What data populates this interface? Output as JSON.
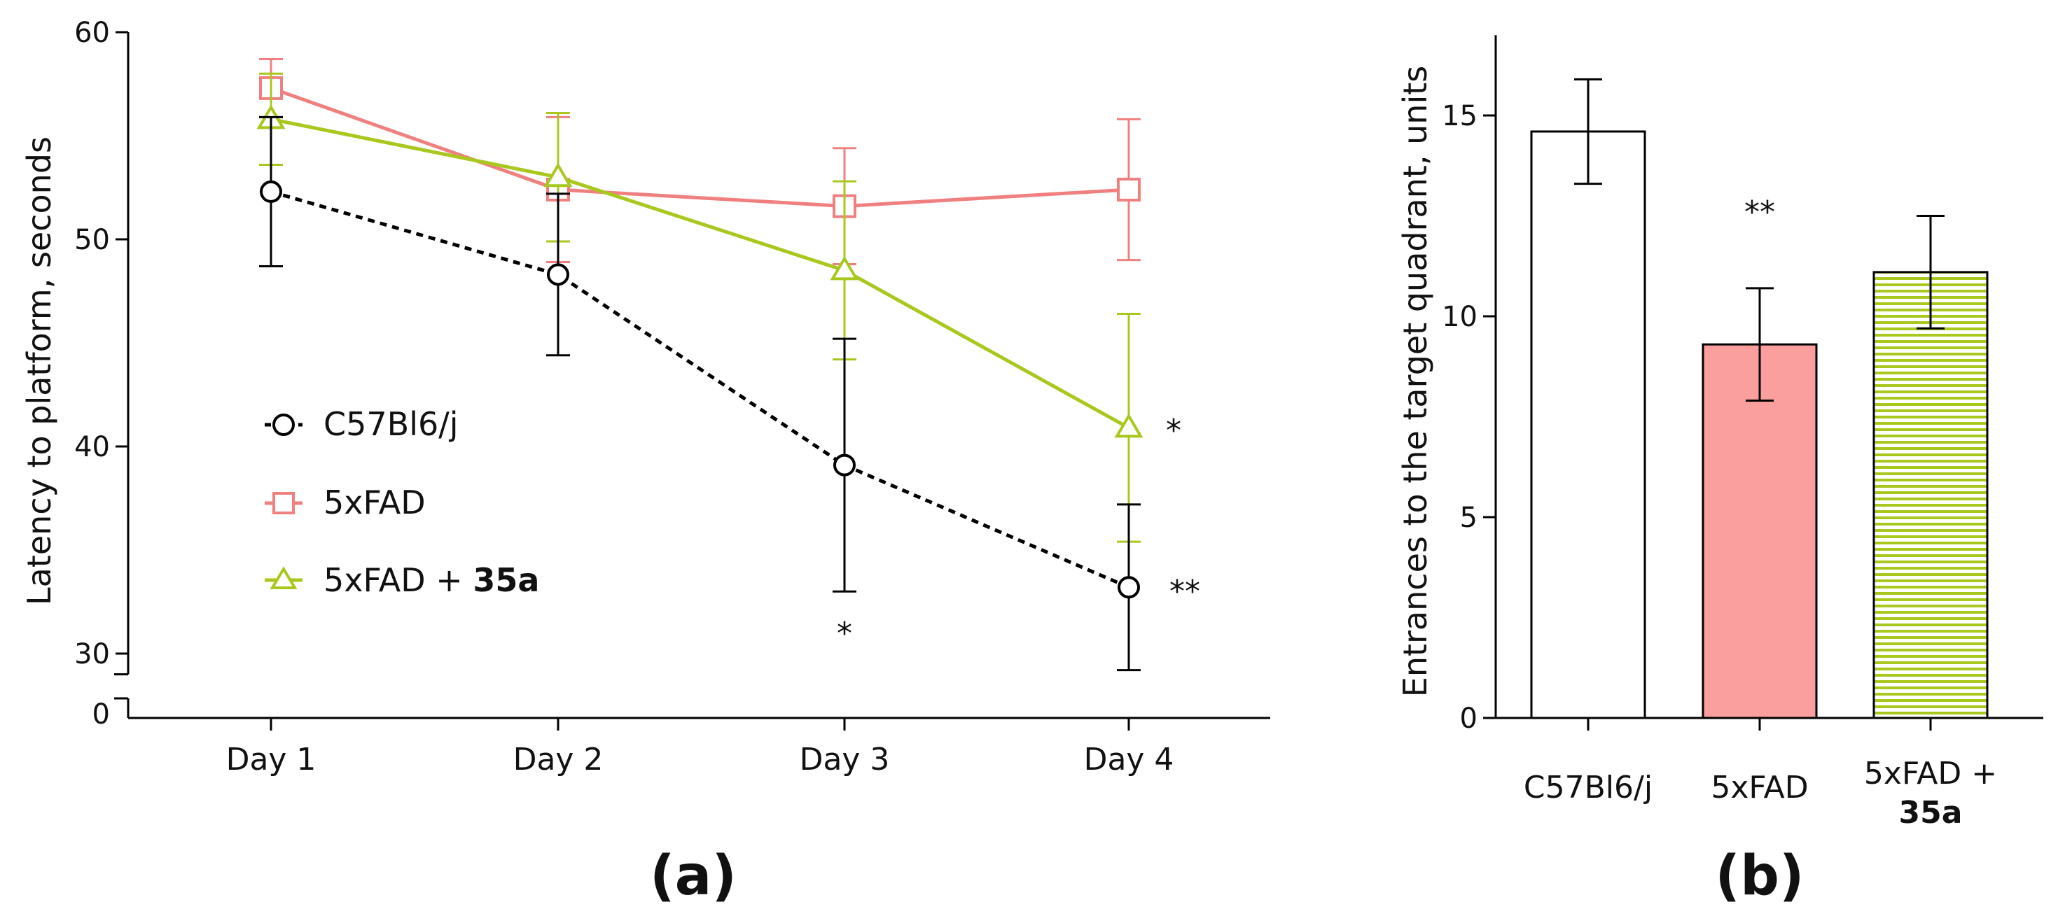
{
  "colors": {
    "c57": "#000000",
    "fad": "#F08080",
    "fad_bar": "#FA9E9E",
    "treat": "#A8C81E",
    "axis": "#000000"
  },
  "chart_data": [
    {
      "type": "line",
      "panel_label": "(a)",
      "ylabel": "Latency to platform, seconds",
      "categories": [
        "Day 1",
        "Day 2",
        "Day 3",
        "Day 4"
      ],
      "y_axis_break": {
        "lower_tick": "0",
        "upper_range": [
          29,
          60
        ]
      },
      "yticks": [
        "30",
        "40",
        "50",
        "60"
      ],
      "series": [
        {
          "name": "C57Bl6/j",
          "color": "#000000",
          "dashed": true,
          "marker": "circle",
          "values": [
            52.3,
            48.3,
            39.1,
            33.2
          ],
          "errors": [
            3.6,
            3.9,
            6.1,
            4.0
          ]
        },
        {
          "name": "5xFAD",
          "color": "#F08080",
          "dashed": false,
          "marker": "square",
          "values": [
            57.3,
            52.4,
            51.6,
            52.4
          ],
          "errors": [
            1.4,
            3.5,
            2.8,
            3.4
          ]
        },
        {
          "name": "5xFAD + 35a",
          "color": "#A8C81E",
          "dashed": false,
          "marker": "triangle",
          "values": [
            55.8,
            53.0,
            48.5,
            40.9
          ],
          "errors": [
            2.2,
            3.1,
            4.3,
            5.5
          ]
        }
      ],
      "legend": [
        {
          "text": "C57Bl6/j",
          "bold_suffix": ""
        },
        {
          "text": "5xFAD",
          "bold_suffix": ""
        },
        {
          "text": "5xFAD + ",
          "bold_suffix": "35a"
        }
      ],
      "annotations": [
        {
          "category": "Day 3",
          "text": "*",
          "position": "below"
        },
        {
          "category": "Day 4",
          "text": "*",
          "position": "right-of-green"
        },
        {
          "category": "Day 4",
          "text": "**",
          "position": "right-of-black"
        }
      ]
    },
    {
      "type": "bar",
      "panel_label": "(b)",
      "ylabel": "Entrances to the target quadrant, units",
      "ylim": [
        0,
        17
      ],
      "yticks": [
        "0",
        "5",
        "10",
        "15"
      ],
      "categories": [
        {
          "line1": "C57Bl6/j",
          "line2": ""
        },
        {
          "line1": "5xFAD",
          "line2": ""
        },
        {
          "line1": "5xFAD +",
          "line2": "35a"
        }
      ],
      "values": [
        14.6,
        9.3,
        11.1
      ],
      "errors": [
        1.3,
        1.4,
        1.4
      ],
      "fills": [
        "#ffffff",
        "#FA9E9E",
        "striped-green"
      ],
      "annotations": [
        {
          "category_index": 1,
          "text": "**"
        }
      ]
    }
  ]
}
